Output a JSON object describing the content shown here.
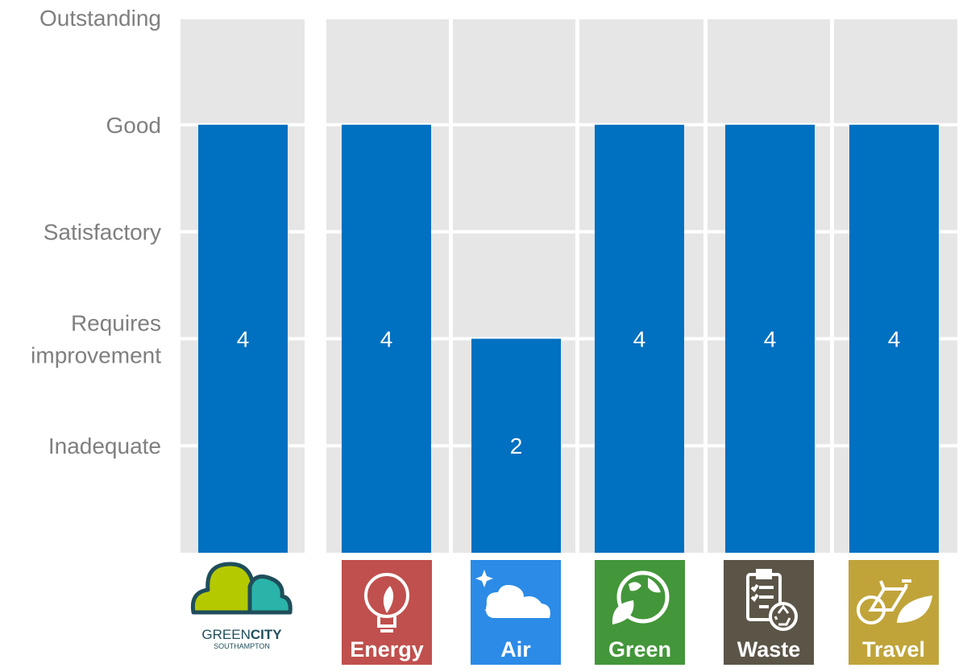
{
  "chart_data": {
    "type": "bar",
    "title": "",
    "xlabel": "",
    "ylabel": "",
    "ylim": [
      0,
      5
    ],
    "grid": true,
    "y_tick_labels": [
      {
        "value": 1,
        "lines": [
          "Inadequate"
        ]
      },
      {
        "value": 2,
        "lines": [
          "Requires",
          "improvement"
        ]
      },
      {
        "value": 3,
        "lines": [
          "Satisfactory"
        ]
      },
      {
        "value": 4,
        "lines": [
          "Good"
        ]
      },
      {
        "value": 5,
        "lines": [
          "Outstanding"
        ]
      }
    ],
    "categories": [
      "Green City Southampton",
      "Energy",
      "Air",
      "Green",
      "Waste",
      "Travel"
    ],
    "values": [
      4,
      4,
      2,
      4,
      4,
      4
    ],
    "data_labels": [
      "4",
      "4",
      "2",
      "4",
      "4",
      "4"
    ],
    "bar_color": "#0070c0"
  },
  "logo": {
    "line1_a": "GREEN",
    "line1_b": "CITY",
    "line2": "SOUTHAMPTON",
    "colors": {
      "left_cloud": "#b5c900",
      "right_cloud": "#2ab4a9",
      "outline": "#1f4e5a"
    }
  },
  "tiles": [
    {
      "label": "Energy",
      "icon": "lightbulb-leaf-icon",
      "color": "#c0504d"
    },
    {
      "label": "Air",
      "icon": "cloud-sparkle-icon",
      "color": "#2b8be6"
    },
    {
      "label": "Green",
      "icon": "globe-leaf-icon",
      "color": "#43963a"
    },
    {
      "label": "Waste",
      "icon": "clipboard-recycle-icon",
      "color": "#5b5548"
    },
    {
      "label": "Travel",
      "icon": "bicycle-leaf-icon",
      "color": "#c0a43a"
    }
  ]
}
